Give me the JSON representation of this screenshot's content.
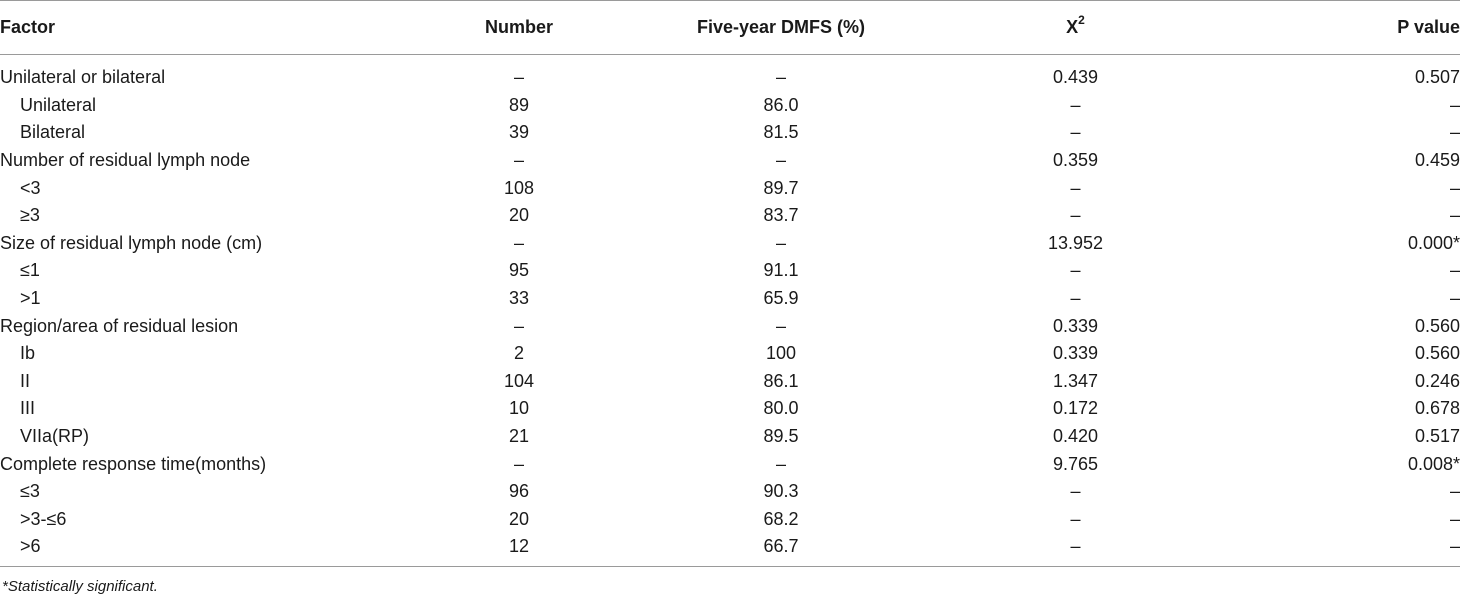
{
  "table": {
    "headers": {
      "factor": "Factor",
      "number": "Number",
      "dmfs": "Five-year DMFS (%)",
      "chi_base": "X",
      "chi_sup": "2",
      "p": "P value"
    },
    "rows": [
      {
        "factor": "Unilateral or bilateral",
        "number": "–",
        "dmfs": "–",
        "chi": "0.439",
        "p": "0.507"
      },
      {
        "factor": "Unilateral",
        "number": "89",
        "dmfs": "86.0",
        "chi": "–",
        "p": "–"
      },
      {
        "factor": "Bilateral",
        "number": "39",
        "dmfs": "81.5",
        "chi": "–",
        "p": "–"
      },
      {
        "factor": "Number of residual lymph node",
        "number": "–",
        "dmfs": "–",
        "chi": "0.359",
        "p": "0.459"
      },
      {
        "factor": "<3",
        "number": "108",
        "dmfs": "89.7",
        "chi": "–",
        "p": "–"
      },
      {
        "factor": "≥3",
        "number": "20",
        "dmfs": "83.7",
        "chi": "–",
        "p": "–"
      },
      {
        "factor": "Size of residual lymph node (cm)",
        "number": "–",
        "dmfs": "–",
        "chi": "13.952",
        "p": "0.000*"
      },
      {
        "factor": "≤1",
        "number": "95",
        "dmfs": "91.1",
        "chi": "–",
        "p": "–"
      },
      {
        "factor": ">1",
        "number": "33",
        "dmfs": "65.9",
        "chi": "–",
        "p": "–"
      },
      {
        "factor": "Region/area of residual lesion",
        "number": "–",
        "dmfs": "–",
        "chi": "0.339",
        "p": "0.560"
      },
      {
        "factor": "Ib",
        "number": "2",
        "dmfs": "100",
        "chi": "0.339",
        "p": "0.560"
      },
      {
        "factor": "II",
        "number": "104",
        "dmfs": "86.1",
        "chi": "1.347",
        "p": "0.246"
      },
      {
        "factor": "III",
        "number": "10",
        "dmfs": "80.0",
        "chi": "0.172",
        "p": "0.678"
      },
      {
        "factor": "VIIa(RP)",
        "number": "21",
        "dmfs": "89.5",
        "chi": "0.420",
        "p": "0.517"
      },
      {
        "factor": "Complete response time(months)",
        "number": "–",
        "dmfs": "–",
        "chi": "9.765",
        "p": "0.008*"
      },
      {
        "factor": "≤3",
        "number": "96",
        "dmfs": "90.3",
        "chi": "–",
        "p": "–"
      },
      {
        "factor": ">3-≤6",
        "number": "20",
        "dmfs": "68.2",
        "chi": "–",
        "p": "–"
      },
      {
        "factor": ">6",
        "number": "12",
        "dmfs": "66.7",
        "chi": "–",
        "p": "–"
      }
    ]
  },
  "footnote": "*Statistically significant."
}
